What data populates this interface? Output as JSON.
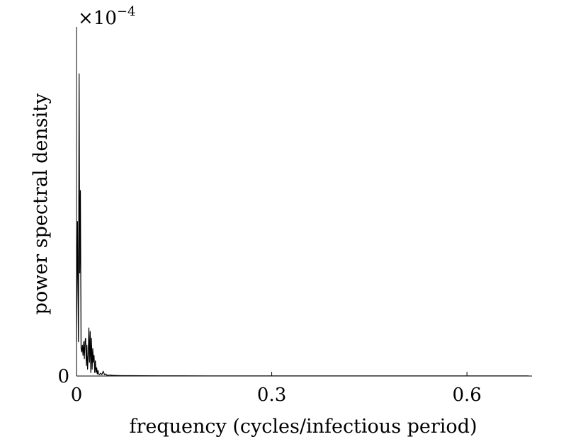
{
  "chart_data": {
    "type": "line",
    "title": "",
    "xlabel": "frequency (cycles/infectious period)",
    "ylabel": "power spectral density",
    "scale_note": {
      "base": "×10",
      "exponent": "−4"
    },
    "xlim": [
      0,
      0.7
    ],
    "ylim": [
      0,
      5
    ],
    "x_ticks": [
      0,
      0.3,
      0.6
    ],
    "x_tick_labels": [
      "0",
      "0.3",
      "0.6"
    ],
    "y_ticks": [
      0
    ],
    "y_tick_labels": [
      "0"
    ],
    "grid": false,
    "line_color": "#000000",
    "series": [
      {
        "x": [
          0,
          0.0015,
          0.003,
          0.004,
          0.005,
          0.006,
          0.007,
          0.008,
          0.009,
          0.01,
          0.011,
          0.012,
          0.013,
          0.014,
          0.015,
          0.016,
          0.017,
          0.018,
          0.019,
          0.02,
          0.021,
          0.022,
          0.023,
          0.024,
          0.025,
          0.026,
          0.027,
          0.028,
          0.029,
          0.03,
          0.031,
          0.032,
          0.033,
          0.034,
          0.035,
          0.037,
          0.039,
          0.041,
          0.043,
          0.045,
          0.047,
          0.05,
          0.055,
          0.06,
          0.07,
          0.085,
          0.1,
          0.13,
          0.16,
          0.2,
          0.25,
          0.3,
          0.35,
          0.4,
          0.45,
          0.5,
          0.55,
          0.6,
          0.65,
          0.695
        ],
        "y": [
          0.5,
          2.25,
          0.5,
          4.4,
          1.5,
          2.7,
          0.4,
          0.35,
          0.45,
          0.3,
          0.5,
          0.25,
          0.5,
          0.55,
          0.15,
          0.45,
          0.1,
          0.3,
          0.7,
          0.2,
          0.65,
          0.05,
          0.55,
          0.1,
          0.4,
          0.2,
          0.3,
          0.05,
          0.22,
          0.05,
          0.12,
          0.03,
          0.08,
          0.03,
          0.02,
          0.04,
          0.02,
          0.07,
          0.02,
          0.03,
          0.01,
          0.015,
          0.01,
          0.008,
          0.006,
          0.005,
          0.004,
          0.003,
          0.003,
          0.002,
          0.002,
          0.002,
          0.001,
          0.001,
          0.001,
          0.001,
          0.001,
          0.001,
          0.001,
          0.001
        ]
      }
    ]
  }
}
